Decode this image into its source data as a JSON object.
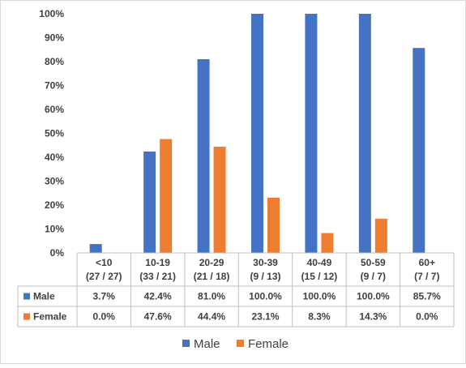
{
  "chart_data": {
    "type": "bar",
    "title": "",
    "xlabel": "",
    "ylabel": "",
    "ylim": [
      0,
      100
    ],
    "yticks": [
      "0%",
      "10%",
      "20%",
      "30%",
      "40%",
      "50%",
      "60%",
      "70%",
      "80%",
      "90%",
      "100%"
    ],
    "categories": [
      {
        "name": "<10",
        "counts": "(27 / 27)"
      },
      {
        "name": "10-19",
        "counts": "(33 / 21)"
      },
      {
        "name": "20-29",
        "counts": "(21 / 18)"
      },
      {
        "name": "30-39",
        "counts": "(9 / 13)"
      },
      {
        "name": "40-49",
        "counts": "(15 / 12)"
      },
      {
        "name": "50-59",
        "counts": "(9 / 7)"
      },
      {
        "name": "60+",
        "counts": "(7 / 7)"
      }
    ],
    "series": [
      {
        "name": "Male",
        "color": "#4472C4",
        "values": [
          3.7,
          42.4,
          81.0,
          100.0,
          100.0,
          100.0,
          85.7
        ],
        "labels": [
          "3.7%",
          "42.4%",
          "81.0%",
          "100.0%",
          "100.0%",
          "100.0%",
          "85.7%"
        ]
      },
      {
        "name": "Female",
        "color": "#ED7D31",
        "values": [
          0.0,
          47.6,
          44.4,
          23.1,
          8.3,
          14.3,
          0.0
        ],
        "labels": [
          "0.0%",
          "47.6%",
          "44.4%",
          "23.1%",
          "8.3%",
          "14.3%",
          "0.0%"
        ]
      }
    ],
    "grid": false,
    "legend_position": "bottom",
    "data_table": true
  }
}
